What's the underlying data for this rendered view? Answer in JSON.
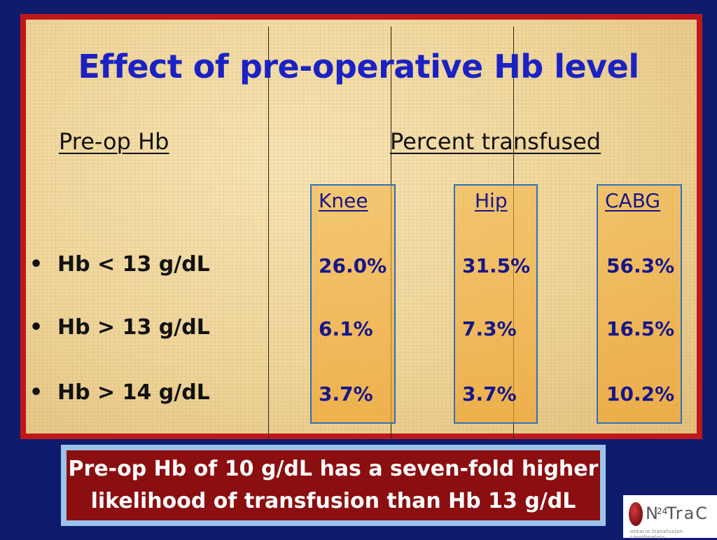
{
  "title": "Effect of pre-operative Hb level",
  "headings": {
    "preop": "Pre-op Hb",
    "percent": "Percent transfused"
  },
  "columns": [
    "Knee",
    "Hip",
    "CABG"
  ],
  "rows": [
    {
      "bullet": "•",
      "label": "Hb < 13 g/dL",
      "values": [
        "26.0%",
        "31.5%",
        "56.3%"
      ]
    },
    {
      "bullet": "•",
      "label": "Hb > 13 g/dL",
      "values": [
        "6.1%",
        "7.3%",
        "16.5%"
      ]
    },
    {
      "bullet": "•",
      "label": "Hb > 14 g/dL",
      "values": [
        "3.7%",
        "3.7%",
        "10.2%"
      ]
    }
  ],
  "callout": {
    "line1": "Pre-op Hb of 10 g/dL has a seven-fold higher",
    "line2": "likelihood of transfusion than Hb 13 g/dL"
  },
  "logo": {
    "text": "N  TraC",
    "subtitle": "ontario transfusion coordinators",
    "slide_number": "24"
  },
  "colors": {
    "background": "#0f1c6e",
    "frame": "#c0181a",
    "title": "#1b22c4",
    "values": "#16168a",
    "column_border": "#2f6fb8",
    "callout_bg": "#8b0e10",
    "callout_border": "#9cc4ea"
  }
}
